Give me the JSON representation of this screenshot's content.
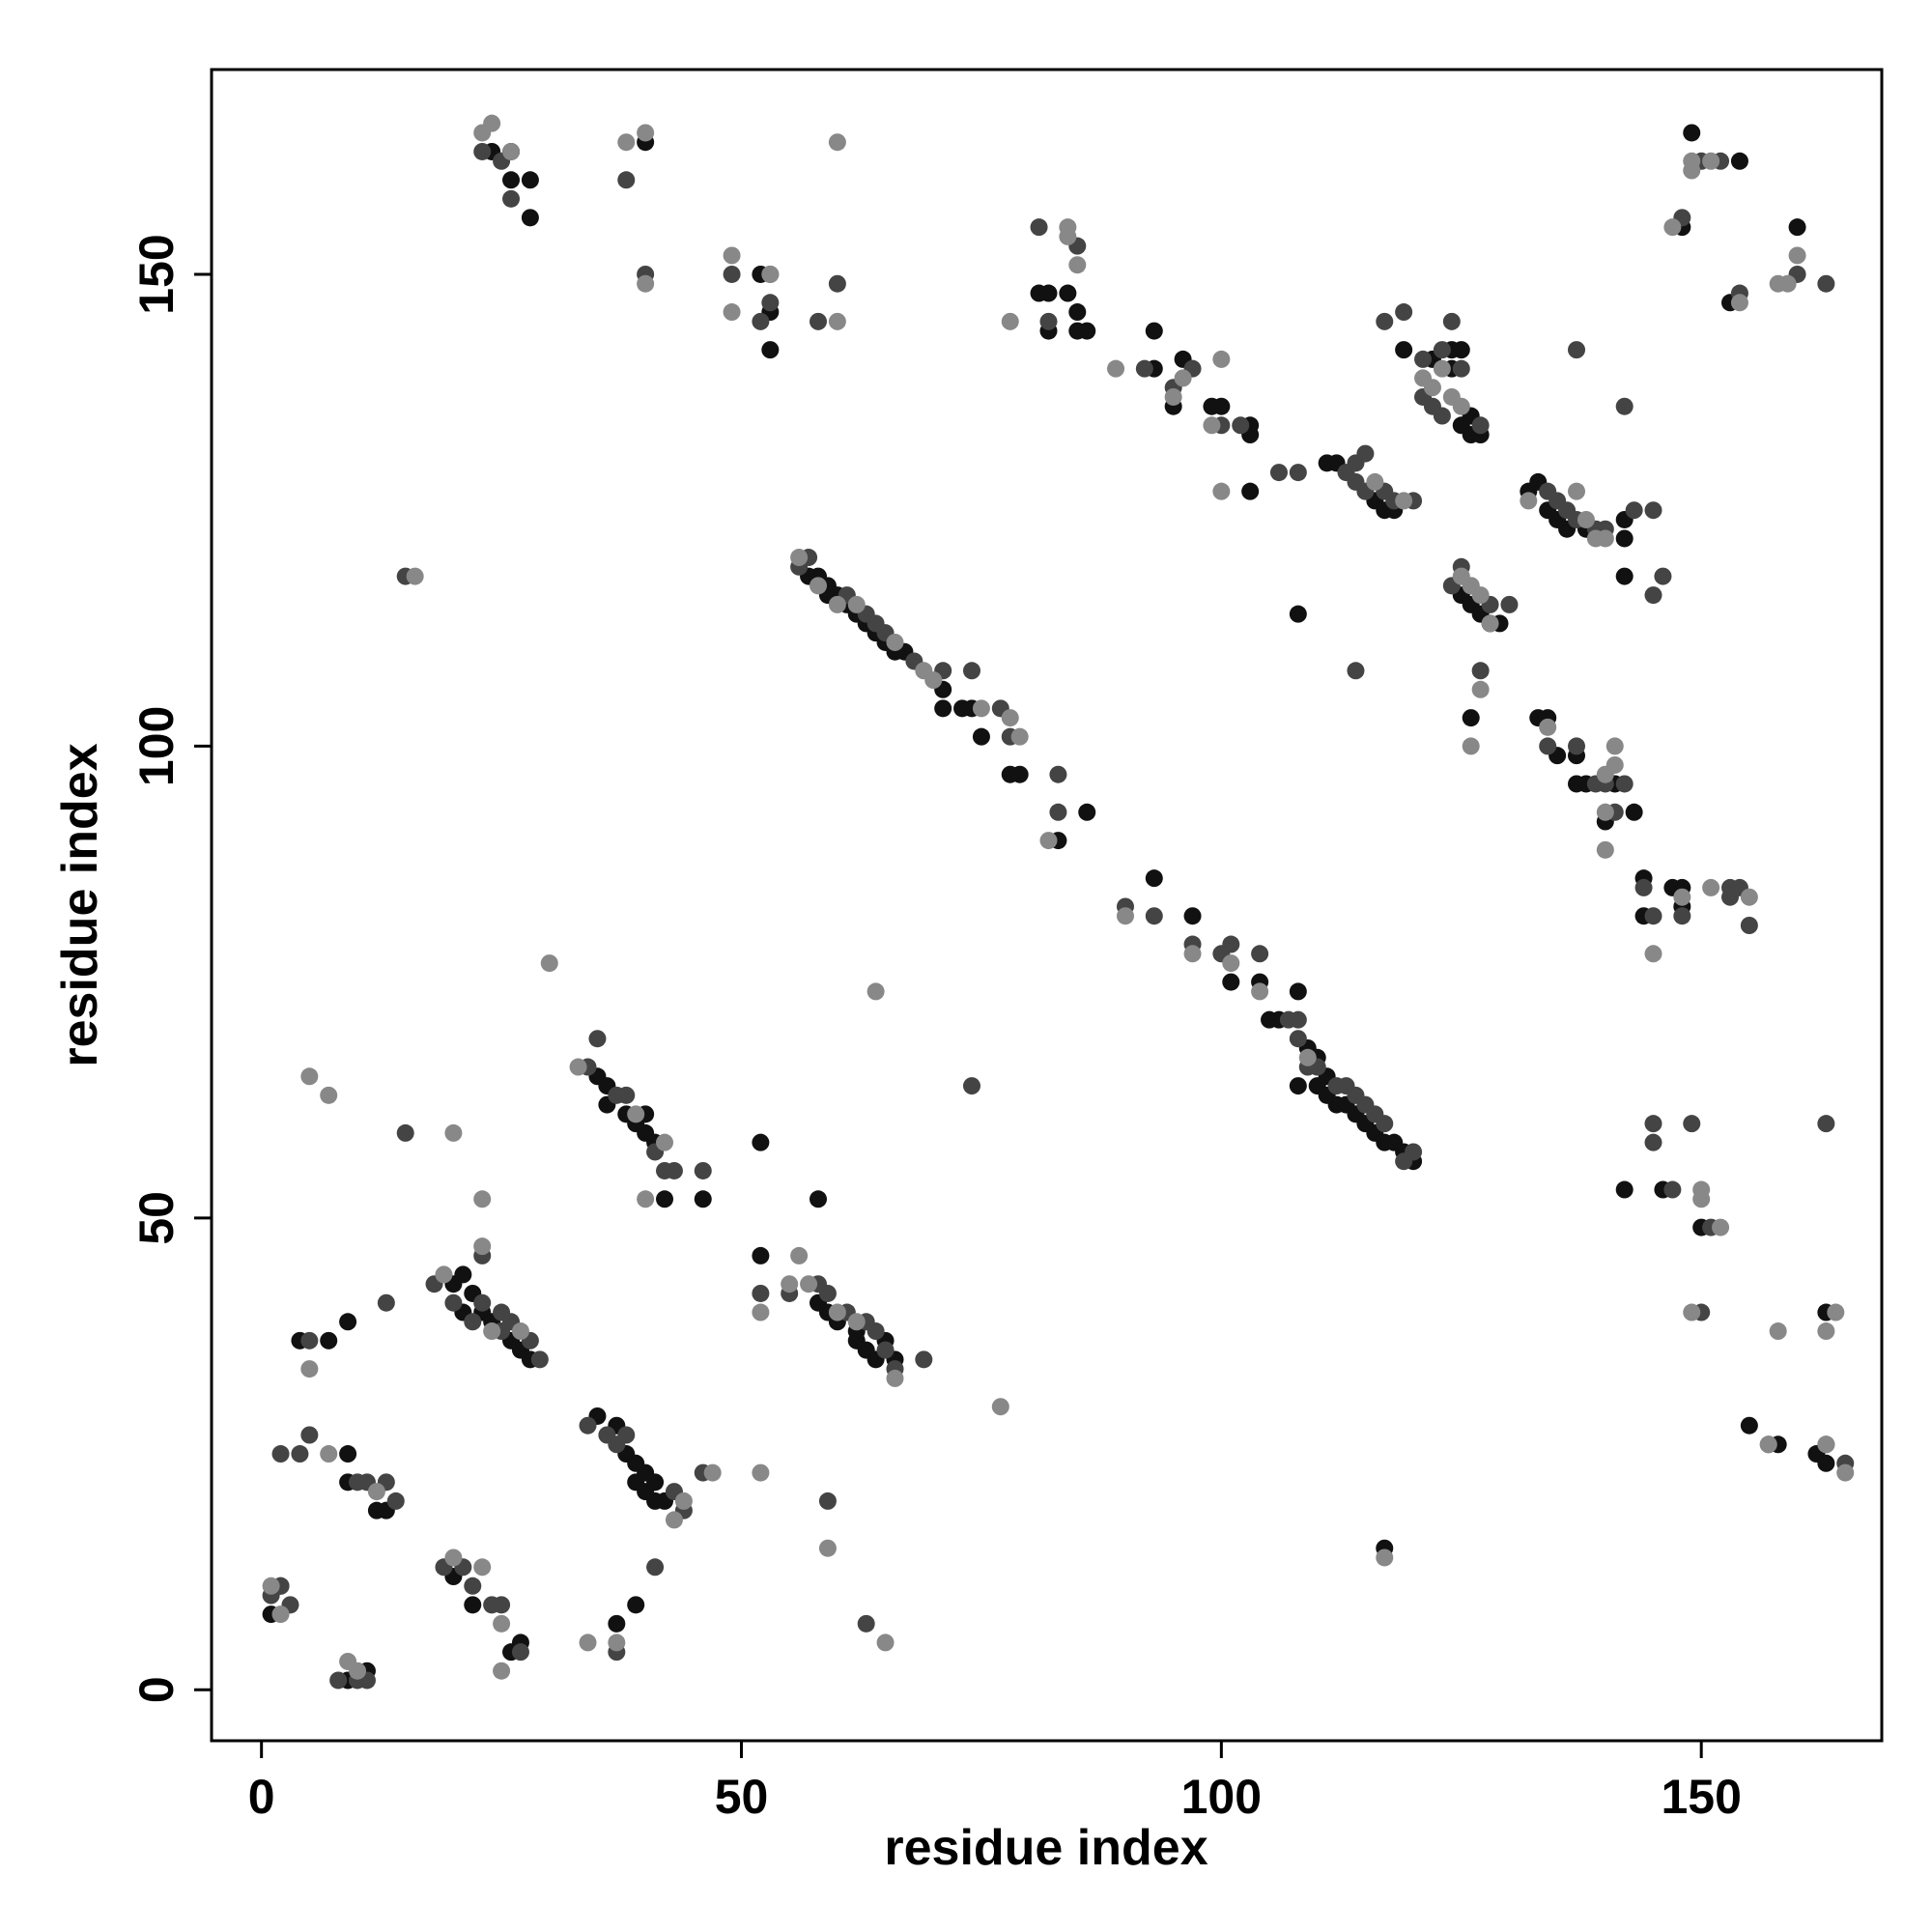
{
  "chart_data": {
    "type": "scatter",
    "xlabel": "residue index",
    "ylabel": "residue index",
    "xlim": [
      -5.2,
      168.8
    ],
    "ylim": [
      -5.4,
      171.7
    ],
    "xticks": [
      0,
      50,
      100,
      150
    ],
    "yticks": [
      0,
      50,
      100,
      150
    ],
    "series": [
      {
        "color": "#111111",
        "x": [
          1,
          2,
          9,
          11,
          9,
          9,
          12,
          13,
          4,
          7,
          9,
          20,
          22,
          26,
          27,
          20,
          21,
          21,
          22,
          23,
          24,
          26,
          27,
          28,
          24,
          26,
          26,
          28,
          28,
          35,
          36,
          36,
          38,
          39,
          40,
          40,
          41,
          42,
          46,
          35,
          37,
          38,
          39,
          39,
          40,
          40,
          41,
          41,
          42,
          37,
          39,
          40,
          53,
          52,
          53,
          52,
          52,
          58,
          58,
          59,
          60,
          62,
          62,
          63,
          64,
          65,
          66,
          57,
          58,
          59,
          59,
          60,
          61,
          62,
          63,
          64,
          65,
          66,
          67,
          71,
          71,
          73,
          74,
          75,
          78,
          79,
          86,
          83,
          81,
          82,
          82,
          84,
          85,
          85,
          86,
          93,
          93,
          95,
          96,
          99,
          100,
          103,
          103,
          103,
          93,
          97,
          101,
          104,
          105,
          106,
          108,
          109,
          110,
          108,
          110,
          111,
          111,
          112,
          113,
          114,
          115,
          116,
          117,
          118,
          119,
          120,
          108,
          117,
          111,
          112,
          116,
          117,
          118,
          119,
          122,
          124,
          125,
          124,
          126,
          127,
          126,
          125,
          125,
          126,
          127,
          128,
          129,
          126,
          132,
          133,
          134,
          135,
          136,
          138,
          142,
          142,
          142,
          133,
          134,
          135,
          137,
          137,
          138,
          141,
          140,
          143,
          144,
          144,
          147,
          148,
          148,
          142,
          146,
          150,
          148,
          149,
          154,
          153,
          160,
          155,
          158,
          162,
          163,
          163
        ],
        "values": [
          8,
          11,
          1,
          2,
          25,
          22,
          19,
          19,
          37,
          37,
          39,
          12,
          9,
          4,
          5,
          43,
          44,
          40,
          42,
          40,
          39,
          37,
          36,
          35,
          163,
          163,
          160,
          160,
          156,
          65,
          64,
          62,
          61,
          60,
          61,
          59,
          58,
          52,
          52,
          29,
          28,
          25,
          24,
          22,
          23,
          21,
          22,
          20,
          20,
          7,
          9,
          164,
          142,
          150,
          146,
          58,
          46,
          52,
          41,
          40,
          39,
          38,
          37,
          36,
          35,
          37,
          35,
          118,
          118,
          117,
          116,
          116,
          115,
          114,
          113,
          112,
          111,
          110,
          110,
          106,
          104,
          104,
          104,
          101,
          97,
          97,
          93,
          90,
          148,
          148,
          144,
          148,
          146,
          144,
          144,
          140,
          144,
          136,
          141,
          136,
          136,
          133,
          134,
          127,
          86,
          82,
          75,
          75,
          71,
          71,
          74,
          68,
          67,
          64,
          64,
          65,
          63,
          62,
          62,
          61,
          60,
          59,
          58,
          58,
          57,
          56,
          114,
          15,
          130,
          130,
          126,
          125,
          125,
          142,
          141,
          142,
          142,
          140,
          133,
          133,
          135,
          134,
          116,
          115,
          114,
          113,
          113,
          103,
          127,
          128,
          125,
          124,
          123,
          123,
          124,
          122,
          118,
          103,
          103,
          99,
          99,
          96,
          96,
          96,
          92,
          93,
          86,
          82,
          85,
          85,
          83,
          53,
          53,
          49,
          155,
          165,
          162,
          147,
          155,
          28,
          26,
          25,
          24,
          40
        ]
      },
      {
        "color": "#444444",
        "x": [
          2,
          3,
          1,
          8,
          10,
          11,
          2,
          4,
          5,
          10,
          11,
          13,
          14,
          5,
          13,
          15,
          15,
          19,
          21,
          22,
          24,
          25,
          27,
          18,
          20,
          22,
          23,
          25,
          25,
          26,
          28,
          29,
          23,
          23,
          25,
          26,
          34,
          35,
          37,
          38,
          41,
          42,
          43,
          46,
          34,
          36,
          37,
          38,
          43,
          44,
          46,
          37,
          41,
          38,
          40,
          49,
          53,
          52,
          53,
          58,
          60,
          52,
          59,
          63,
          74,
          55,
          58,
          59,
          61,
          63,
          64,
          65,
          66,
          69,
          56,
          57,
          61,
          63,
          64,
          65,
          68,
          71,
          74,
          77,
          78,
          83,
          83,
          81,
          82,
          85,
          92,
          95,
          97,
          100,
          102,
          106,
          108,
          90,
          93,
          97,
          100,
          101,
          104,
          107,
          108,
          108,
          109,
          110,
          112,
          113,
          114,
          115,
          116,
          117,
          119,
          120,
          114,
          113,
          114,
          115,
          114,
          115,
          117,
          118,
          117,
          119,
          120,
          121,
          123,
          121,
          122,
          123,
          125,
          124,
          127,
          126,
          124,
          125,
          128,
          130,
          127,
          134,
          135,
          136,
          137,
          139,
          140,
          143,
          145,
          137,
          142,
          145,
          146,
          134,
          137,
          139,
          140,
          141,
          142,
          144,
          145,
          148,
          153,
          154,
          153,
          155,
          145,
          145,
          147,
          149,
          151,
          150,
          148,
          150,
          152,
          154,
          160,
          163,
          157,
          163,
          165,
          163
        ],
        "values": [
          11,
          9,
          10,
          1,
          1,
          1,
          25,
          25,
          27,
          22,
          22,
          22,
          20,
          37,
          41,
          59,
          118,
          13,
          13,
          11,
          9,
          9,
          4,
          43,
          41,
          39,
          41,
          40,
          38,
          39,
          37,
          35,
          46,
          163,
          162,
          158,
          66,
          69,
          63,
          63,
          57,
          55,
          55,
          55,
          28,
          27,
          26,
          27,
          21,
          19,
          23,
          4,
          13,
          160,
          150,
          150,
          150,
          145,
          147,
          145,
          149,
          42,
          20,
          7,
          64,
          42,
          43,
          42,
          40,
          39,
          38,
          36,
          34,
          35,
          119,
          120,
          116,
          114,
          113,
          112,
          109,
          108,
          108,
          104,
          101,
          97,
          93,
          155,
          145,
          153,
          140,
          138,
          140,
          134,
          134,
          129,
          129,
          83,
          82,
          79,
          78,
          79,
          78,
          71,
          71,
          69,
          66,
          66,
          64,
          64,
          63,
          62,
          61,
          60,
          56,
          57,
          108,
          129,
          130,
          131,
          128,
          127,
          127,
          126,
          145,
          146,
          126,
          141,
          142,
          137,
          136,
          135,
          140,
          145,
          134,
          117,
          117,
          119,
          115,
          115,
          108,
          127,
          126,
          125,
          124,
          123,
          123,
          125,
          125,
          142,
          136,
          116,
          118,
          100,
          100,
          96,
          96,
          93,
          96,
          85,
          82,
          82,
          85,
          85,
          84,
          81,
          60,
          58,
          53,
          60,
          49,
          40,
          156,
          162,
          162,
          148,
          150,
          149,
          26,
          26,
          24,
          60
        ]
      },
      {
        "color": "#888888",
        "x": [
          2,
          1,
          9,
          10,
          7,
          12,
          5,
          5,
          7,
          20,
          16,
          20,
          23,
          25,
          25,
          19,
          23,
          23,
          24,
          27,
          23,
          24,
          26,
          30,
          33,
          39,
          42,
          40,
          34,
          37,
          43,
          44,
          47,
          38,
          40,
          40,
          49,
          49,
          53,
          60,
          60,
          52,
          52,
          56,
          59,
          65,
          64,
          77,
          55,
          57,
          60,
          62,
          66,
          56,
          58,
          60,
          62,
          66,
          69,
          70,
          75,
          79,
          78,
          82,
          78,
          84,
          84,
          85,
          89,
          95,
          96,
          100,
          99,
          100,
          90,
          97,
          101,
          104,
          109,
          117,
          116,
          119,
          122,
          121,
          124,
          125,
          123,
          126,
          127,
          125,
          128,
          127,
          126,
          132,
          137,
          138,
          139,
          140,
          134,
          141,
          141,
          140,
          140,
          140,
          145,
          148,
          151,
          155,
          150,
          150,
          152,
          149,
          147,
          149,
          149,
          151,
          154,
          158,
          159,
          160,
          157,
          158,
          163,
          165,
          164,
          163
        ],
        "values": [
          8,
          11,
          3,
          2,
          25,
          21,
          34,
          65,
          63,
          59,
          118,
          14,
          13,
          7,
          2,
          44,
          52,
          47,
          38,
          38,
          165,
          166,
          163,
          77,
          66,
          61,
          58,
          52,
          5,
          5,
          18,
          20,
          23,
          164,
          165,
          149,
          152,
          146,
          150,
          145,
          164,
          23,
          40,
          46,
          15,
          5,
          74,
          30,
          43,
          43,
          40,
          39,
          33,
          120,
          117,
          115,
          115,
          111,
          108,
          107,
          104,
          101,
          103,
          90,
          145,
          155,
          154,
          151,
          140,
          137,
          139,
          141,
          134,
          127,
          82,
          78,
          77,
          74,
          67,
          14,
          128,
          126,
          138,
          139,
          137,
          136,
          140,
          117,
          116,
          118,
          113,
          106,
          100,
          126,
          127,
          124,
          122,
          122,
          102,
          98,
          100,
          97,
          93,
          89,
          78,
          84,
          85,
          84,
          53,
          52,
          49,
          40,
          155,
          162,
          161,
          162,
          147,
          149,
          149,
          152,
          26,
          38,
          26,
          23,
          40,
          38
        ]
      }
    ]
  }
}
